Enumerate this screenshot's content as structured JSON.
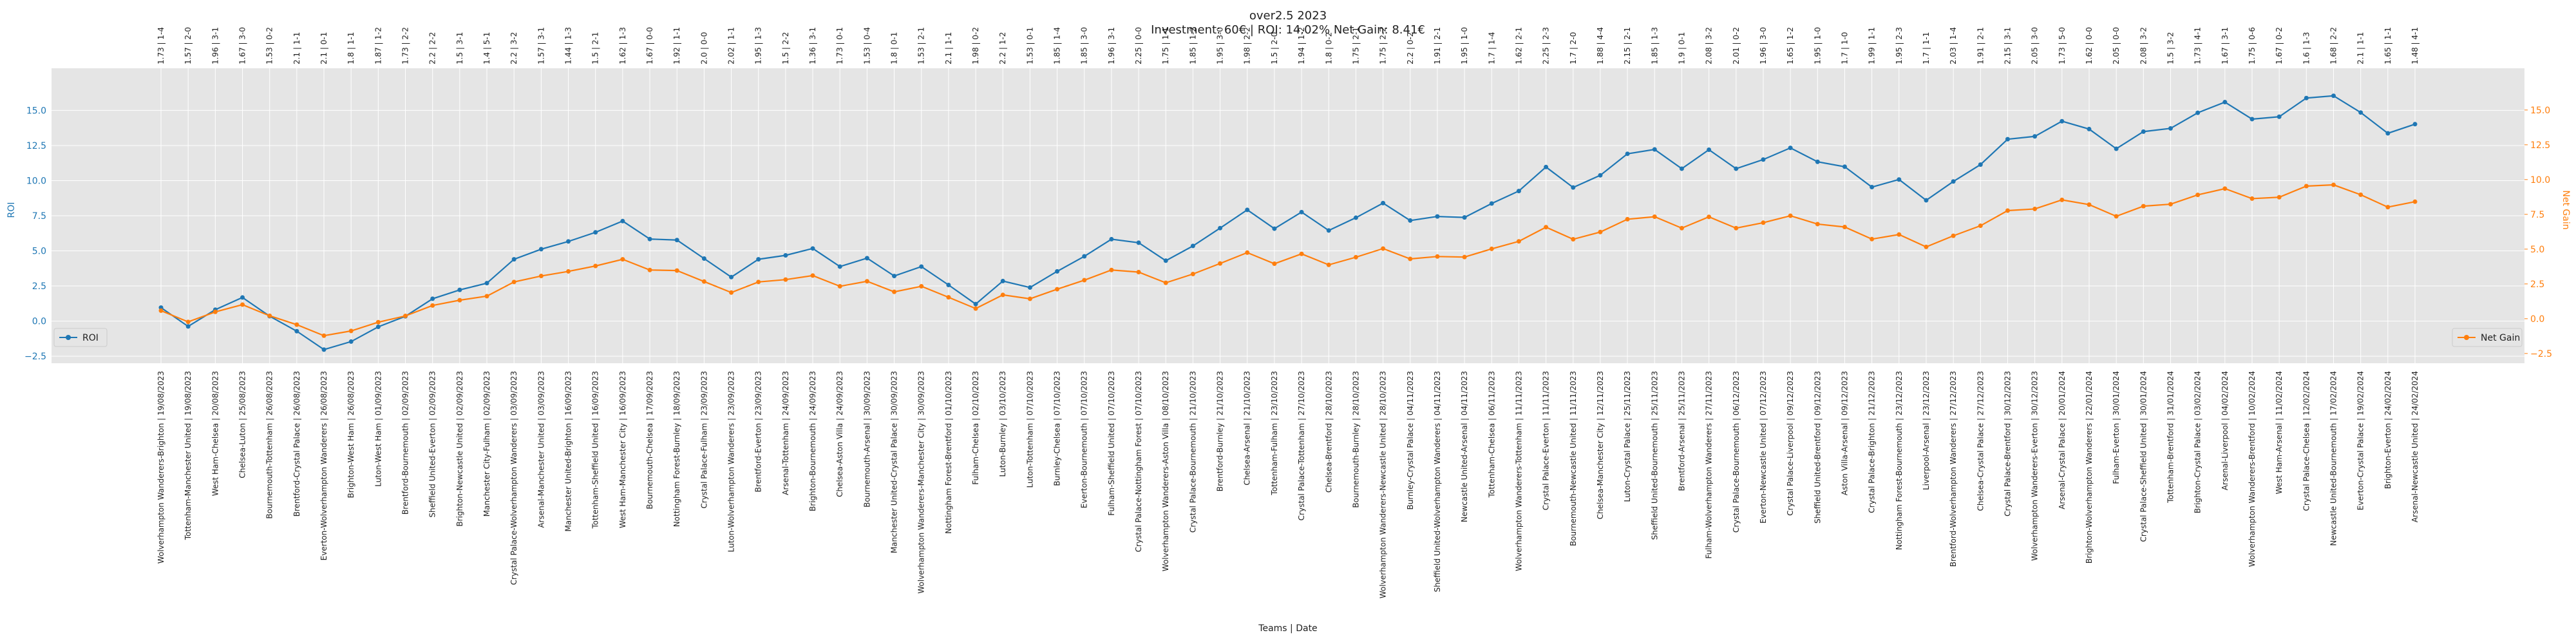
{
  "chart_data": {
    "type": "line",
    "title": "over2.5 2023",
    "subtitle": "Investment: 60€ | ROI: 14.02% Net Gain: 8.41€",
    "xlabel": "Teams | Date",
    "ylabel_left": "ROI",
    "ylabel_right": "Net Gain",
    "ylim_left": [
      -3.0,
      18.0
    ],
    "ylim_right": [
      -3.2,
      18.0
    ],
    "yticks": [
      -2.5,
      0.0,
      2.5,
      5.0,
      7.5,
      10.0,
      12.5,
      15.0
    ],
    "ytick_labels": [
      "−2.5",
      "0.0",
      "2.5",
      "5.0",
      "7.5",
      "10.0",
      "12.5",
      "15.0"
    ],
    "grid": true,
    "legend_left": "middle-left",
    "legend_right": "middle-right",
    "categories": [
      "Wolverhampton Wanderers-Brighton | 19/08/2023",
      "Tottenham-Manchester United | 19/08/2023",
      "West Ham-Chelsea | 20/08/2023",
      "Chelsea-Luton | 25/08/2023",
      "Bournemouth-Tottenham | 26/08/2023",
      "Brentford-Crystal Palace | 26/08/2023",
      "Everton-Wolverhampton Wanderers | 26/08/2023",
      "Brighton-West Ham | 26/08/2023",
      "Luton-West Ham | 01/09/2023",
      "Brentford-Bournemouth | 02/09/2023",
      "Sheffield United-Everton | 02/09/2023",
      "Brighton-Newcastle United | 02/09/2023",
      "Manchester City-Fulham | 02/09/2023",
      "Crystal Palace-Wolverhampton Wanderers | 03/09/2023",
      "Arsenal-Manchester United | 03/09/2023",
      "Manchester United-Brighton | 16/09/2023",
      "Tottenham-Sheffield United | 16/09/2023",
      "West Ham-Manchester City | 16/09/2023",
      "Bournemouth-Chelsea | 17/09/2023",
      "Nottingham Forest-Burnley | 18/09/2023",
      "Crystal Palace-Fulham | 23/09/2023",
      "Luton-Wolverhampton Wanderers | 23/09/2023",
      "Brentford-Everton | 23/09/2023",
      "Arsenal-Tottenham | 24/09/2023",
      "Brighton-Bournemouth | 24/09/2023",
      "Chelsea-Aston Villa | 24/09/2023",
      "Bournemouth-Arsenal | 30/09/2023",
      "Manchester United-Crystal Palace | 30/09/2023",
      "Wolverhampton Wanderers-Manchester City | 30/09/2023",
      "Nottingham Forest-Brentford | 01/10/2023",
      "Fulham-Chelsea | 02/10/2023",
      "Luton-Burnley | 03/10/2023",
      "Luton-Tottenham | 07/10/2023",
      "Burnley-Chelsea | 07/10/2023",
      "Everton-Bournemouth | 07/10/2023",
      "Fulham-Sheffield United | 07/10/2023",
      "Crystal Palace-Nottingham Forest | 07/10/2023",
      "Wolverhampton Wanderers-Aston Villa | 08/10/2023",
      "Crystal Palace-Bournemouth | 21/10/2023",
      "Brentford-Burnley | 21/10/2023",
      "Chelsea-Arsenal | 21/10/2023",
      "Tottenham-Fulham | 23/10/2023",
      "Crystal Palace-Tottenham | 27/10/2023",
      "Chelsea-Brentford | 28/10/2023",
      "Bournemouth-Burnley | 28/10/2023",
      "Wolverhampton Wanderers-Newcastle United | 28/10/2023",
      "Burnley-Crystal Palace | 04/11/2023",
      "Sheffield United-Wolverhampton Wanderers | 04/11/2023",
      "Newcastle United-Arsenal | 04/11/2023",
      "Tottenham-Chelsea | 06/11/2023",
      "Wolverhampton Wanderers-Tottenham | 11/11/2023",
      "Crystal Palace-Everton | 11/11/2023",
      "Bournemouth-Newcastle United | 11/11/2023",
      "Chelsea-Manchester City | 12/11/2023",
      "Luton-Crystal Palace | 25/11/2023",
      "Sheffield United-Bournemouth | 25/11/2023",
      "Brentford-Arsenal | 25/11/2023",
      "Fulham-Wolverhampton Wanderers | 27/11/2023",
      "Crystal Palace-Bournemouth | 06/12/2023",
      "Everton-Newcastle United | 07/12/2023",
      "Crystal Palace-Liverpool | 09/12/2023",
      "Sheffield United-Brentford | 09/12/2023",
      "Aston Villa-Arsenal | 09/12/2023",
      "Crystal Palace-Brighton | 21/12/2023",
      "Nottingham Forest-Bournemouth | 23/12/2023",
      "Liverpool-Arsenal | 23/12/2023",
      "Brentford-Wolverhampton Wanderers | 27/12/2023",
      "Chelsea-Crystal Palace | 27/12/2023",
      "Crystal Palace-Brentford | 30/12/2023",
      "Wolverhampton Wanderers-Everton | 30/12/2023",
      "Arsenal-Crystal Palace | 20/01/2024",
      "Brighton-Wolverhampton Wanderers | 22/01/2024",
      "Fulham-Everton | 30/01/2024",
      "Crystal Palace-Sheffield United | 30/01/2024",
      "Tottenham-Brentford | 31/01/2024",
      "Brighton-Crystal Palace | 03/02/2024",
      "Arsenal-Liverpool | 04/02/2024",
      "Wolverhampton Wanderers-Brentford | 10/02/2024",
      "West Ham-Arsenal | 11/02/2024",
      "Crystal Palace-Chelsea | 12/02/2024",
      "Newcastle United-Bournemouth | 17/02/2024",
      "Everton-Crystal Palace | 19/02/2024",
      "Brighton-Everton | 24/02/2024",
      "Arsenal-Newcastle United | 24/02/2024"
    ],
    "top_labels": [
      "1.73 | 1-4",
      "1.57 | 2-0",
      "1.96 | 3-1",
      "1.67 | 3-0",
      "1.53 | 0-2",
      "2.1 | 1-1",
      "2.1 | 0-1",
      "1.8 | 1-1",
      "1.87 | 1-2",
      "1.73 | 2-2",
      "2.2 | 2-2",
      "1.5 | 3-1",
      "1.4 | 5-1",
      "2.2 | 3-2",
      "1.57 | 3-1",
      "1.44 | 1-3",
      "1.5 | 2-1",
      "1.62 | 1-3",
      "1.67 | 0-0",
      "1.92 | 1-1",
      "2.0 | 0-0",
      "2.02 | 1-1",
      "1.95 | 1-3",
      "1.5 | 2-2",
      "1.36 | 3-1",
      "1.73 | 0-1",
      "1.53 | 0-4",
      "1.8 | 0-1",
      "1.53 | 2-1",
      "2.1 | 1-1",
      "1.98 | 0-2",
      "2.2 | 1-2",
      "1.53 | 0-1",
      "1.85 | 1-4",
      "1.85 | 3-0",
      "1.96 | 3-1",
      "2.25 | 0-0",
      "1.75 | 1-1",
      "1.85 | 1-2",
      "1.95 | 3-0",
      "1.98 | 2-2",
      "1.5 | 2-0",
      "1.94 | 1-2",
      "1.8 | 0-2",
      "1.75 | 2-1",
      "1.75 | 2-2",
      "2.2 | 0-2",
      "1.91 | 2-1",
      "1.95 | 1-0",
      "1.7 | 1-4",
      "1.62 | 2-1",
      "2.25 | 2-3",
      "1.7 | 2-0",
      "1.88 | 4-4",
      "2.15 | 2-1",
      "1.85 | 1-3",
      "1.9 | 0-1",
      "2.08 | 3-2",
      "2.01 | 0-2",
      "1.96 | 3-0",
      "1.65 | 1-2",
      "1.95 | 1-0",
      "1.7 | 1-0",
      "1.99 | 1-1",
      "1.95 | 2-3",
      "1.7 | 1-1",
      "2.03 | 1-4",
      "1.91 | 2-1",
      "2.15 | 3-1",
      "2.05 | 3-0",
      "1.73 | 5-0",
      "1.62 | 0-0",
      "2.05 | 0-0",
      "2.08 | 3-2",
      "1.5 | 3-2",
      "1.73 | 4-1",
      "1.67 | 3-1",
      "1.75 | 0-6",
      "1.67 | 0-2",
      "1.6 | 1-3",
      "1.68 | 2-2",
      "2.1 | 1-1",
      "1.65 | 1-1",
      "1.48 | 4-1"
    ],
    "series": [
      {
        "name": "ROI",
        "axis": "left",
        "color": "#1f77b4",
        "values": [
          0.96,
          -0.38,
          0.81,
          1.68,
          0.35,
          -0.72,
          -2.03,
          -1.46,
          -0.41,
          0.34,
          1.59,
          2.22,
          2.7,
          4.4,
          5.12,
          5.67,
          6.32,
          7.12,
          5.84,
          5.77,
          4.45,
          3.13,
          4.4,
          4.68,
          5.17,
          3.88,
          4.48,
          3.21,
          3.88,
          2.57,
          1.21,
          2.85,
          2.39,
          3.54,
          4.61,
          5.83,
          5.58,
          4.3,
          5.35,
          6.62,
          7.92,
          6.58,
          7.76,
          6.45,
          7.36,
          8.4,
          7.16,
          7.45,
          7.38,
          8.37,
          9.26,
          10.97,
          9.51,
          10.38,
          11.91,
          12.22,
          10.85,
          12.2,
          10.85,
          11.5,
          12.33,
          11.34,
          10.99,
          9.54,
          10.08,
          8.6,
          9.94,
          11.14,
          12.95,
          13.15,
          14.23,
          13.67,
          12.27,
          13.49,
          13.72,
          14.83,
          15.59,
          14.38,
          14.55,
          15.88,
          16.04,
          14.85,
          13.37,
          14.02
        ]
      },
      {
        "name": "Net Gain",
        "axis": "right",
        "color": "#ff7f0e",
        "values": [
          0.58,
          -0.23,
          0.49,
          1.01,
          0.21,
          -0.43,
          -1.22,
          -0.88,
          -0.25,
          0.2,
          0.95,
          1.33,
          1.62,
          2.64,
          3.07,
          3.4,
          3.79,
          4.27,
          3.5,
          3.46,
          2.67,
          1.88,
          2.64,
          2.81,
          3.1,
          2.33,
          2.69,
          1.93,
          2.33,
          1.54,
          0.73,
          1.71,
          1.43,
          2.12,
          2.77,
          3.5,
          3.35,
          2.58,
          3.21,
          3.97,
          4.75,
          3.95,
          4.66,
          3.87,
          4.42,
          5.04,
          4.3,
          4.47,
          4.43,
          5.02,
          5.56,
          6.58,
          5.71,
          6.23,
          7.15,
          7.33,
          6.51,
          7.32,
          6.51,
          6.9,
          7.4,
          6.8,
          6.59,
          5.72,
          6.05,
          5.16,
          5.96,
          6.68,
          7.77,
          7.89,
          8.54,
          8.2,
          7.36,
          8.09,
          8.23,
          8.9,
          9.35,
          8.63,
          8.73,
          9.53,
          9.62,
          8.91,
          8.02,
          8.41
        ]
      }
    ]
  }
}
